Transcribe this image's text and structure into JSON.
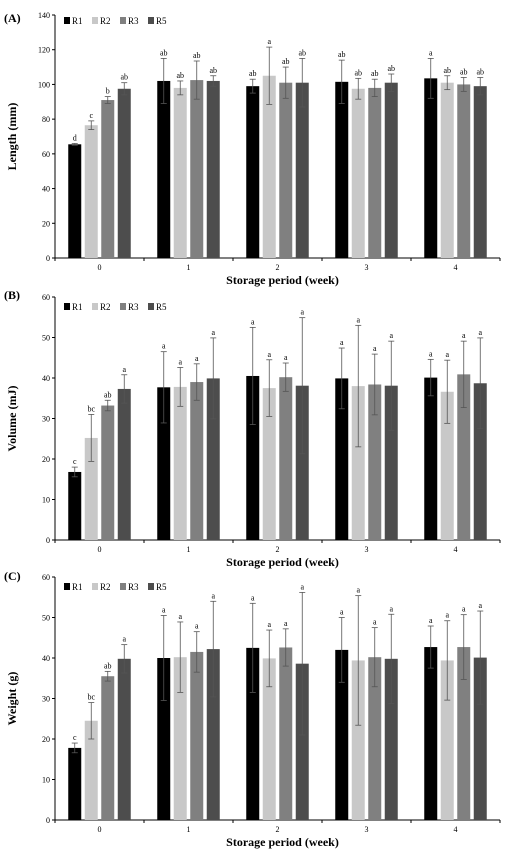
{
  "chart_data": [
    {
      "type": "bar",
      "panel_label": "(A)",
      "ylabel": "Length (mm)",
      "xlabel": "Storage period (week)",
      "ylim": [
        0,
        140
      ],
      "yticks": [
        0,
        20,
        40,
        60,
        80,
        100,
        120,
        140
      ],
      "categories": [
        "0",
        "1",
        "2",
        "3",
        "4"
      ],
      "legend_position": "top-left",
      "series": [
        {
          "name": "R1",
          "color": "#000000",
          "values": [
            65.5,
            102,
            99,
            101.5,
            103.5
          ],
          "errors": [
            0.5,
            13,
            4,
            12.5,
            11.5
          ],
          "letters": [
            "d",
            "ab",
            "ab",
            "ab",
            "a"
          ]
        },
        {
          "name": "R2",
          "color": "#c8c8c8",
          "values": [
            76.5,
            98,
            105,
            97.5,
            101
          ],
          "errors": [
            2.5,
            4,
            16.5,
            6,
            4
          ],
          "letters": [
            "c",
            "ab",
            "a",
            "ab",
            "ab"
          ]
        },
        {
          "name": "R3",
          "color": "#808080",
          "values": [
            91,
            102.5,
            101,
            98,
            100
          ],
          "errors": [
            2,
            11,
            9,
            5,
            4
          ],
          "letters": [
            "b",
            "ab",
            "ab",
            "ab",
            "ab"
          ]
        },
        {
          "name": "R5",
          "color": "#4d4d4d",
          "values": [
            97.5,
            102,
            101,
            101,
            99
          ],
          "errors": [
            3.5,
            3,
            14,
            5,
            5
          ],
          "letters": [
            "ab",
            "ab",
            "ab",
            "ab",
            "ab"
          ]
        }
      ]
    },
    {
      "type": "bar",
      "panel_label": "(B)",
      "ylabel": "Volume (mJ)",
      "xlabel": "Storage period (week)",
      "ylim": [
        0,
        60
      ],
      "yticks": [
        0,
        10,
        20,
        30,
        40,
        50,
        60
      ],
      "categories": [
        "0",
        "1",
        "2",
        "3",
        "4"
      ],
      "legend_position": "top-left",
      "series": [
        {
          "name": "R1",
          "color": "#000000",
          "values": [
            16.8,
            37.7,
            40.5,
            39.9,
            40.1
          ],
          "errors": [
            1.2,
            8.8,
            12,
            7.5,
            4.5
          ],
          "letters": [
            "c",
            "a",
            "a",
            "a",
            "a"
          ]
        },
        {
          "name": "R2",
          "color": "#c8c8c8",
          "values": [
            25.2,
            37.8,
            37.5,
            38,
            36.6
          ],
          "errors": [
            5.8,
            4.8,
            7,
            15,
            7.8
          ],
          "letters": [
            "bc",
            "a",
            "a",
            "a",
            "a"
          ]
        },
        {
          "name": "R3",
          "color": "#808080",
          "values": [
            33.2,
            39,
            40.2,
            38.4,
            40.9
          ],
          "errors": [
            1.3,
            4.5,
            3.5,
            7.5,
            8.2
          ],
          "letters": [
            "ab",
            "a",
            "a",
            "a",
            "a"
          ]
        },
        {
          "name": "R5",
          "color": "#4d4d4d",
          "values": [
            37.3,
            39.9,
            38.1,
            38.1,
            38.7
          ],
          "errors": [
            3.5,
            10,
            16.8,
            11,
            11.2
          ],
          "letters": [
            "a",
            "a",
            "a",
            "a",
            "a"
          ]
        }
      ]
    },
    {
      "type": "bar",
      "panel_label": "(C)",
      "ylabel": "Weight (g)",
      "xlabel": "Storage period (week)",
      "ylim": [
        0,
        60
      ],
      "yticks": [
        0,
        10,
        20,
        30,
        40,
        50,
        60
      ],
      "categories": [
        "0",
        "1",
        "2",
        "3",
        "4"
      ],
      "legend_position": "top-left",
      "series": [
        {
          "name": "R1",
          "color": "#000000",
          "values": [
            17.8,
            40,
            42.5,
            42,
            42.7
          ],
          "errors": [
            1.2,
            10.5,
            11,
            8,
            5.2
          ],
          "letters": [
            "c",
            "a",
            "a",
            "a",
            "a"
          ]
        },
        {
          "name": "R2",
          "color": "#c8c8c8",
          "values": [
            24.5,
            40.2,
            39.9,
            39.4,
            39.4
          ],
          "errors": [
            4.5,
            8.7,
            7,
            16,
            9.8
          ],
          "letters": [
            "bc",
            "a",
            "a",
            "a",
            "a"
          ]
        },
        {
          "name": "R3",
          "color": "#808080",
          "values": [
            35.5,
            41.5,
            42.6,
            40.2,
            42.7
          ],
          "errors": [
            1.2,
            5,
            4.6,
            7.3,
            8
          ],
          "letters": [
            "ab",
            "a",
            "a",
            "a",
            "a"
          ]
        },
        {
          "name": "R5",
          "color": "#4d4d4d",
          "values": [
            39.8,
            42.2,
            38.6,
            39.8,
            40.1
          ],
          "errors": [
            3.5,
            11.8,
            17.6,
            11,
            11.5
          ],
          "letters": [
            "a",
            "a",
            "a",
            "a",
            "a"
          ]
        }
      ]
    }
  ]
}
